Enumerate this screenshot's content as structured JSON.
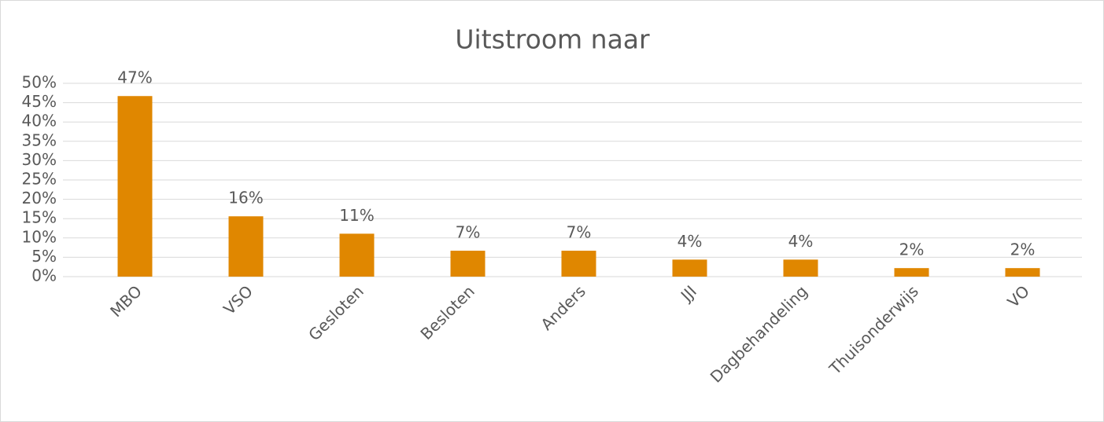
{
  "chart_data": {
    "type": "bar",
    "title": "Uitstroom naar",
    "categories": [
      "MBO",
      "VSO",
      "Gesloten",
      "Besloten",
      "Anders",
      "JJI",
      "Dagbehandeling",
      "Thuisonderwijs",
      "VO"
    ],
    "values": [
      46.7,
      15.6,
      11.1,
      6.7,
      6.7,
      4.4,
      4.4,
      2.2,
      2.2
    ],
    "value_labels": [
      "47%",
      "16%",
      "11%",
      "7%",
      "7%",
      "4%",
      "4%",
      "2%",
      "2%"
    ],
    "color": "#e08700",
    "ylim": [
      0,
      50
    ],
    "yticks": [
      {
        "value": 0,
        "label": "0%"
      },
      {
        "value": 5,
        "label": "5%"
      },
      {
        "value": 10,
        "label": "10%"
      },
      {
        "value": 15,
        "label": "15%"
      },
      {
        "value": 20,
        "label": "20%"
      },
      {
        "value": 25,
        "label": "25%"
      },
      {
        "value": 30,
        "label": "30%"
      },
      {
        "value": 35,
        "label": "35%"
      },
      {
        "value": 40,
        "label": "40%"
      },
      {
        "value": 45,
        "label": "45%"
      },
      {
        "value": 50,
        "label": "50%"
      }
    ],
    "grid": true
  }
}
